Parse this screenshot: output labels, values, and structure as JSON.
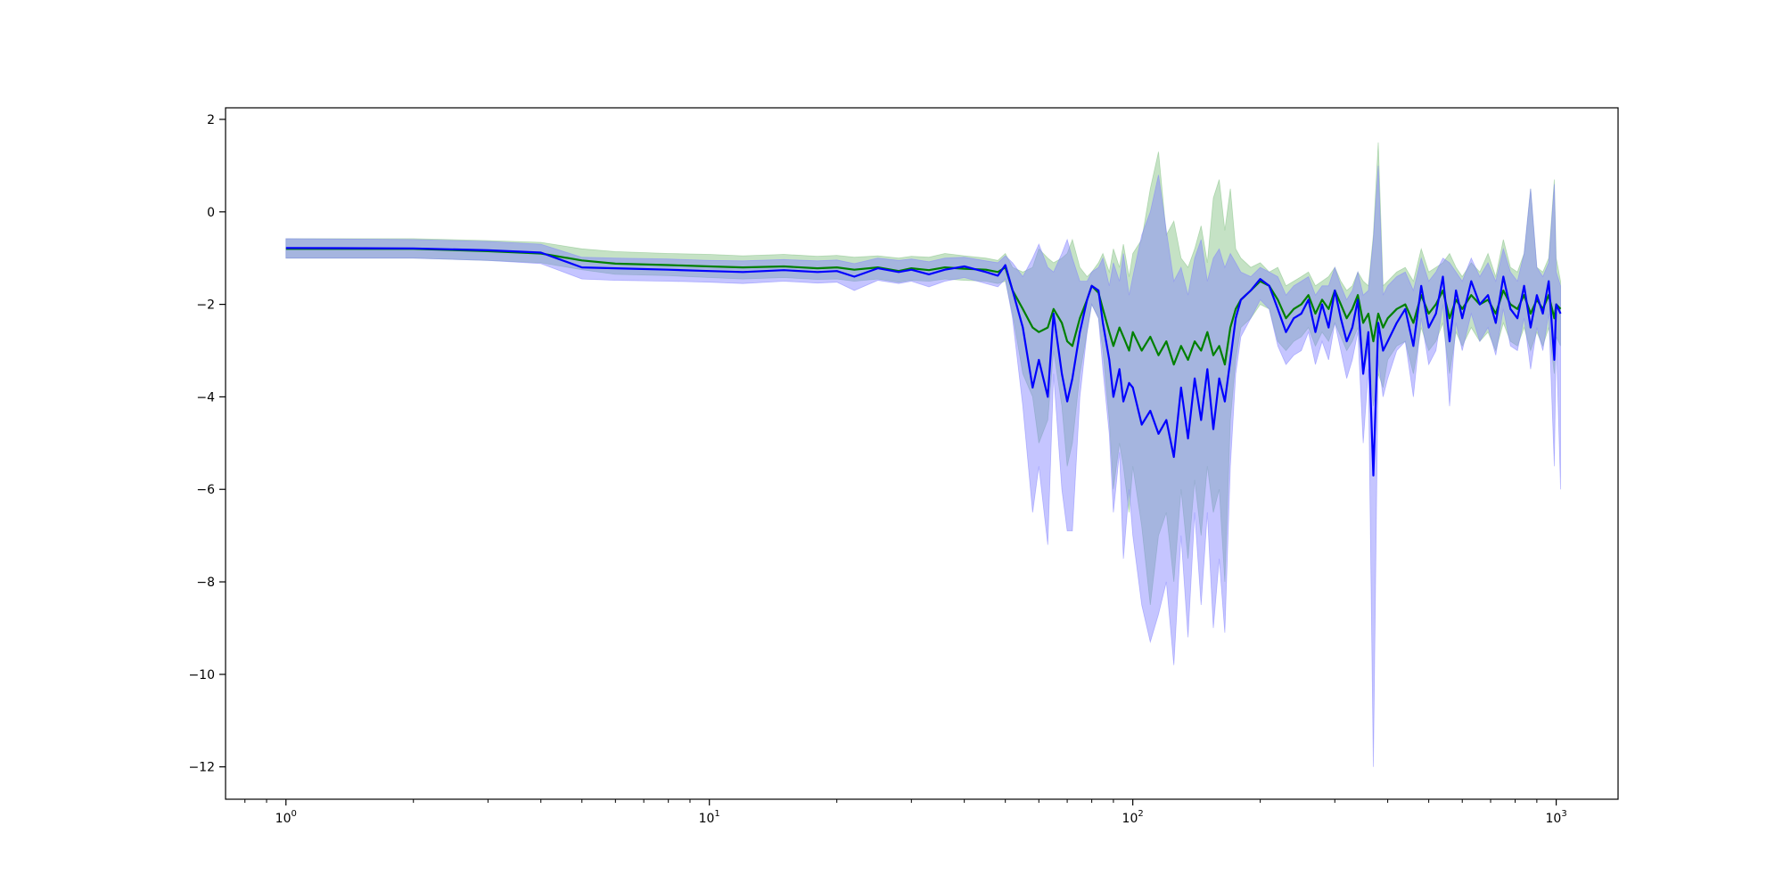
{
  "chart_data": {
    "type": "line",
    "title": "",
    "xlabel": "",
    "ylabel": "",
    "xscale": "log",
    "xlim": [
      0.72,
      1400
    ],
    "ylim": [
      -12.7,
      2.25
    ],
    "grid": false,
    "legend": "none",
    "x_ticks": [
      {
        "value": 1,
        "base": "10",
        "exp": "0"
      },
      {
        "value": 10,
        "base": "10",
        "exp": "1"
      },
      {
        "value": 100,
        "base": "10",
        "exp": "2"
      },
      {
        "value": 1000,
        "base": "10",
        "exp": "3"
      }
    ],
    "y_ticks": [
      {
        "value": 2,
        "label": "2"
      },
      {
        "value": 0,
        "label": "0"
      },
      {
        "value": -2,
        "label": "−2"
      },
      {
        "value": -4,
        "label": "−4"
      },
      {
        "value": -6,
        "label": "−6"
      },
      {
        "value": -8,
        "label": "−8"
      },
      {
        "value": -10,
        "label": "−10"
      },
      {
        "value": -12,
        "label": "−12"
      }
    ],
    "series": [
      {
        "color": "#008000",
        "band_color": "#7fbf7f",
        "x": [
          1,
          2,
          3,
          4,
          5,
          6,
          8,
          10,
          12,
          15,
          18,
          20,
          22,
          25,
          28,
          30,
          33,
          36,
          40,
          45,
          48,
          50,
          52,
          55,
          58,
          60,
          63,
          65,
          68,
          70,
          72,
          75,
          78,
          80,
          83,
          85,
          88,
          90,
          93,
          95,
          98,
          100,
          105,
          110,
          115,
          120,
          125,
          130,
          135,
          140,
          145,
          150,
          155,
          160,
          165,
          170,
          175,
          180,
          190,
          200,
          210,
          220,
          230,
          240,
          250,
          260,
          270,
          280,
          290,
          300,
          310,
          320,
          330,
          340,
          350,
          360,
          370,
          380,
          390,
          400,
          420,
          440,
          460,
          480,
          500,
          520,
          540,
          560,
          580,
          600,
          630,
          660,
          690,
          720,
          750,
          780,
          810,
          840,
          870,
          900,
          930,
          960,
          990,
          1000,
          1024
        ],
        "y": [
          -0.8,
          -0.8,
          -0.85,
          -0.9,
          -1.05,
          -1.12,
          -1.15,
          -1.18,
          -1.2,
          -1.18,
          -1.22,
          -1.2,
          -1.25,
          -1.2,
          -1.28,
          -1.22,
          -1.26,
          -1.2,
          -1.23,
          -1.25,
          -1.3,
          -1.2,
          -1.7,
          -2.1,
          -2.5,
          -2.6,
          -2.5,
          -2.1,
          -2.4,
          -2.8,
          -2.9,
          -2.3,
          -1.9,
          -1.6,
          -1.75,
          -2.1,
          -2.6,
          -2.9,
          -2.5,
          -2.7,
          -3.0,
          -2.6,
          -3.0,
          -2.7,
          -3.1,
          -2.8,
          -3.3,
          -2.9,
          -3.2,
          -2.8,
          -3.0,
          -2.6,
          -3.1,
          -2.9,
          -3.3,
          -2.5,
          -2.1,
          -1.9,
          -1.7,
          -1.5,
          -1.6,
          -1.9,
          -2.3,
          -2.1,
          -2.0,
          -1.8,
          -2.2,
          -1.9,
          -2.1,
          -1.7,
          -2.0,
          -2.3,
          -2.1,
          -1.8,
          -2.4,
          -2.2,
          -2.8,
          -2.2,
          -2.5,
          -2.3,
          -2.1,
          -2.0,
          -2.4,
          -1.8,
          -2.2,
          -2.0,
          -1.7,
          -2.3,
          -1.9,
          -2.1,
          -1.8,
          -2.0,
          -1.9,
          -2.2,
          -1.7,
          -2.0,
          -2.1,
          -1.8,
          -2.2,
          -1.9,
          -2.1,
          -1.8,
          -2.3,
          -2.0,
          -2.1
        ],
        "upper": [
          -0.58,
          -0.58,
          -0.62,
          -0.66,
          -0.8,
          -0.86,
          -0.9,
          -0.92,
          -0.95,
          -0.92,
          -0.96,
          -0.94,
          -0.98,
          -0.95,
          -1.0,
          -0.96,
          -0.98,
          -0.9,
          -0.95,
          -1.0,
          -1.05,
          -0.9,
          -1.2,
          -1.3,
          -1.2,
          -0.8,
          -1.0,
          -1.1,
          -1.0,
          -0.9,
          -0.6,
          -1.2,
          -1.4,
          -1.3,
          -1.1,
          -0.9,
          -1.3,
          -0.8,
          -1.2,
          -0.7,
          -1.4,
          -0.9,
          -0.6,
          0.5,
          1.3,
          -0.5,
          -0.2,
          -1.0,
          -1.2,
          -0.8,
          -0.3,
          -1.1,
          0.3,
          0.7,
          -0.4,
          0.5,
          -0.8,
          -1.0,
          -1.2,
          -1.1,
          -1.3,
          -1.2,
          -1.6,
          -1.5,
          -1.4,
          -1.3,
          -1.6,
          -1.5,
          -1.4,
          -1.2,
          -1.5,
          -1.7,
          -1.6,
          -1.3,
          -1.5,
          -1.6,
          -0.5,
          1.5,
          -1.6,
          -1.5,
          -1.3,
          -1.2,
          -1.5,
          -0.8,
          -1.3,
          -1.2,
          -1.1,
          -0.9,
          -1.2,
          -1.4,
          -1.1,
          -1.3,
          -0.9,
          -1.4,
          -0.6,
          -1.2,
          -1.3,
          -0.9,
          0.5,
          -1.2,
          -1.3,
          -1.0,
          0.7,
          -1.0,
          -1.5
        ],
        "lower": [
          -1.0,
          -1.0,
          -1.05,
          -1.1,
          -1.25,
          -1.35,
          -1.38,
          -1.42,
          -1.45,
          -1.42,
          -1.46,
          -1.45,
          -1.5,
          -1.45,
          -1.52,
          -1.48,
          -1.5,
          -1.45,
          -1.48,
          -1.5,
          -1.55,
          -1.5,
          -2.2,
          -3.5,
          -4.0,
          -5.0,
          -4.5,
          -3.0,
          -4.2,
          -5.5,
          -5.0,
          -3.5,
          -2.6,
          -2.0,
          -2.3,
          -3.0,
          -4.5,
          -6.0,
          -5.0,
          -5.5,
          -6.5,
          -5.5,
          -6.8,
          -8.5,
          -7.0,
          -6.5,
          -8.0,
          -6.0,
          -7.5,
          -5.8,
          -7.0,
          -5.5,
          -6.5,
          -6.0,
          -8.0,
          -4.5,
          -3.2,
          -2.5,
          -2.3,
          -2.0,
          -2.1,
          -2.8,
          -3.0,
          -2.8,
          -2.7,
          -2.5,
          -2.9,
          -2.6,
          -2.8,
          -2.4,
          -2.7,
          -3.0,
          -2.8,
          -2.5,
          -3.5,
          -3.0,
          -4.2,
          -3.5,
          -3.8,
          -3.2,
          -2.9,
          -2.8,
          -3.5,
          -2.5,
          -3.0,
          -2.8,
          -2.4,
          -3.5,
          -2.6,
          -2.9,
          -2.5,
          -2.8,
          -2.6,
          -3.0,
          -2.4,
          -2.8,
          -2.9,
          -2.5,
          -3.0,
          -2.6,
          -2.9,
          -2.5,
          -3.5,
          -2.7,
          -2.9
        ]
      },
      {
        "color": "#0000ff",
        "band_color": "#7f7fff",
        "x": [
          1,
          2,
          3,
          4,
          5,
          6,
          8,
          10,
          12,
          15,
          18,
          20,
          22,
          25,
          28,
          30,
          33,
          36,
          40,
          45,
          48,
          50,
          52,
          55,
          58,
          60,
          63,
          65,
          68,
          70,
          72,
          75,
          78,
          80,
          83,
          85,
          88,
          90,
          93,
          95,
          98,
          100,
          105,
          110,
          115,
          120,
          125,
          130,
          135,
          140,
          145,
          150,
          155,
          160,
          165,
          170,
          175,
          180,
          190,
          200,
          210,
          220,
          230,
          240,
          250,
          260,
          270,
          280,
          290,
          300,
          310,
          320,
          330,
          340,
          350,
          360,
          370,
          380,
          390,
          400,
          420,
          440,
          460,
          480,
          500,
          520,
          540,
          560,
          580,
          600,
          630,
          660,
          690,
          720,
          750,
          780,
          810,
          840,
          870,
          900,
          930,
          960,
          990,
          1000,
          1024
        ],
        "y": [
          -0.78,
          -0.79,
          -0.83,
          -0.88,
          -1.2,
          -1.22,
          -1.25,
          -1.28,
          -1.3,
          -1.26,
          -1.3,
          -1.28,
          -1.4,
          -1.22,
          -1.3,
          -1.25,
          -1.35,
          -1.25,
          -1.18,
          -1.3,
          -1.38,
          -1.15,
          -1.7,
          -2.5,
          -3.8,
          -3.2,
          -4.0,
          -2.2,
          -3.5,
          -4.1,
          -3.6,
          -2.6,
          -1.9,
          -1.6,
          -1.7,
          -2.4,
          -3.2,
          -4.0,
          -3.4,
          -4.1,
          -3.7,
          -3.8,
          -4.6,
          -4.3,
          -4.8,
          -4.5,
          -5.3,
          -3.8,
          -4.9,
          -3.6,
          -4.5,
          -3.4,
          -4.7,
          -3.6,
          -4.1,
          -3.2,
          -2.3,
          -1.9,
          -1.7,
          -1.45,
          -1.6,
          -2.1,
          -2.6,
          -2.3,
          -2.2,
          -1.9,
          -2.6,
          -2.0,
          -2.5,
          -1.7,
          -2.3,
          -2.8,
          -2.5,
          -1.9,
          -3.5,
          -2.6,
          -5.7,
          -2.4,
          -3.0,
          -2.8,
          -2.4,
          -2.1,
          -2.9,
          -1.6,
          -2.5,
          -2.2,
          -1.4,
          -2.8,
          -1.7,
          -2.3,
          -1.5,
          -2.0,
          -1.8,
          -2.4,
          -1.4,
          -2.1,
          -2.3,
          -1.6,
          -2.5,
          -1.8,
          -2.2,
          -1.5,
          -3.2,
          -2.0,
          -2.2
        ],
        "upper": [
          -0.58,
          -0.6,
          -0.64,
          -0.7,
          -0.98,
          -1.0,
          -1.02,
          -1.05,
          -1.06,
          -1.03,
          -1.06,
          -1.04,
          -1.12,
          -1.0,
          -1.05,
          -1.02,
          -1.08,
          -1.0,
          -0.98,
          -1.06,
          -1.1,
          -0.95,
          -1.1,
          -1.4,
          -1.0,
          -0.7,
          -1.2,
          -1.3,
          -0.9,
          -0.6,
          -1.0,
          -1.5,
          -1.5,
          -1.3,
          -1.2,
          -1.0,
          -1.6,
          -1.1,
          -1.5,
          -0.9,
          -1.8,
          -1.4,
          -0.5,
          0.0,
          0.8,
          -0.4,
          -1.5,
          -1.2,
          -1.8,
          -1.0,
          -0.6,
          -1.5,
          -1.0,
          -0.8,
          -1.2,
          -0.9,
          -1.1,
          -1.3,
          -1.4,
          -1.2,
          -1.3,
          -1.4,
          -1.8,
          -1.6,
          -1.5,
          -1.4,
          -1.8,
          -1.6,
          -1.6,
          -1.2,
          -1.6,
          -1.9,
          -1.7,
          -1.3,
          -1.8,
          -1.7,
          -0.6,
          1.0,
          -1.8,
          -1.6,
          -1.4,
          -1.3,
          -1.7,
          -1.0,
          -1.5,
          -1.3,
          -1.0,
          -1.1,
          -1.3,
          -1.5,
          -1.0,
          -1.4,
          -1.1,
          -1.5,
          -0.8,
          -1.3,
          -1.5,
          -0.9,
          0.5,
          -1.2,
          -1.4,
          -1.1,
          0.6,
          -1.3,
          -1.6
        ],
        "lower": [
          -1.0,
          -1.0,
          -1.05,
          -1.12,
          -1.45,
          -1.48,
          -1.5,
          -1.52,
          -1.55,
          -1.5,
          -1.54,
          -1.52,
          -1.7,
          -1.48,
          -1.55,
          -1.5,
          -1.62,
          -1.5,
          -1.42,
          -1.55,
          -1.62,
          -1.45,
          -2.3,
          -4.2,
          -6.5,
          -5.5,
          -7.2,
          -3.5,
          -6.0,
          -6.9,
          -6.9,
          -4.0,
          -2.6,
          -2.0,
          -2.3,
          -3.4,
          -4.8,
          -6.5,
          -5.2,
          -7.5,
          -6.0,
          -7.0,
          -8.5,
          -9.3,
          -8.7,
          -8.0,
          -9.8,
          -7.0,
          -9.2,
          -6.5,
          -8.5,
          -6.5,
          -9.0,
          -7.5,
          -9.1,
          -5.5,
          -3.5,
          -2.7,
          -2.3,
          -1.9,
          -2.1,
          -2.9,
          -3.3,
          -3.1,
          -3.0,
          -2.6,
          -3.3,
          -2.8,
          -3.2,
          -2.4,
          -3.0,
          -3.6,
          -3.2,
          -2.6,
          -5.0,
          -3.4,
          -12.0,
          -3.2,
          -4.0,
          -3.6,
          -3.0,
          -2.8,
          -4.0,
          -2.3,
          -3.3,
          -3.0,
          -2.0,
          -4.2,
          -2.4,
          -3.0,
          -2.2,
          -2.8,
          -2.5,
          -3.1,
          -2.1,
          -2.9,
          -3.0,
          -2.3,
          -3.4,
          -2.5,
          -3.0,
          -2.2,
          -5.5,
          -2.7,
          -6.0
        ]
      }
    ]
  }
}
